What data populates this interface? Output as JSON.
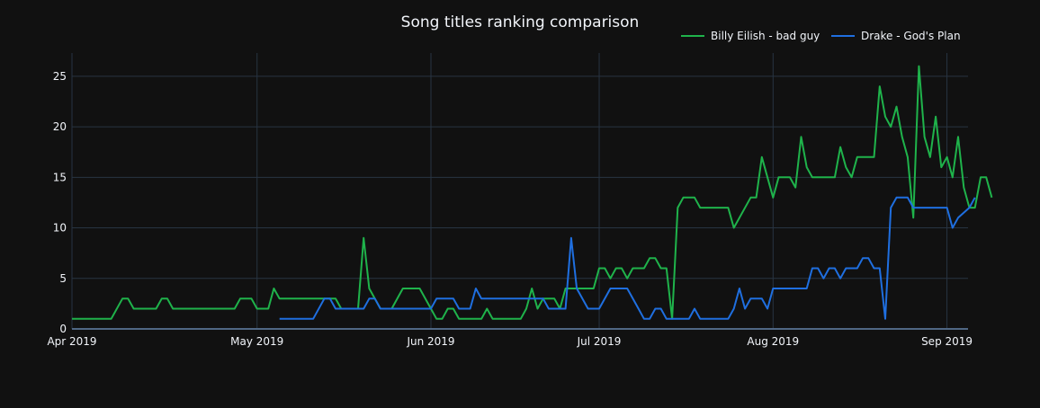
{
  "chart_data": {
    "type": "line",
    "title": "Song titles ranking comparison",
    "xlabel": "",
    "ylabel": "",
    "x_ticks": [
      {
        "label": "Apr 2019",
        "date": "2019-03-29"
      },
      {
        "label": "May 2019",
        "date": "2019-05-01"
      },
      {
        "label": "Jun 2019",
        "date": "2019-06-01"
      },
      {
        "label": "Jul 2019",
        "date": "2019-07-01"
      },
      {
        "label": "Aug 2019",
        "date": "2019-08-01"
      },
      {
        "label": "Sep 2019",
        "date": "2019-09-01"
      }
    ],
    "y_ticks": [
      0,
      5,
      10,
      15,
      20,
      25
    ],
    "xlim": [
      "2019-03-29",
      "2019-09-05"
    ],
    "ylim": [
      0,
      27.3
    ],
    "grid": true,
    "legend_position": "top-right",
    "series": [
      {
        "name": "Billy Eilish - bad guy",
        "color": "#1fb34b",
        "points": [
          [
            "2019-03-29",
            1
          ],
          [
            "2019-04-05",
            1
          ],
          [
            "2019-04-07",
            3
          ],
          [
            "2019-04-08",
            3
          ],
          [
            "2019-04-09",
            2
          ],
          [
            "2019-04-13",
            2
          ],
          [
            "2019-04-14",
            3
          ],
          [
            "2019-04-15",
            3
          ],
          [
            "2019-04-16",
            2
          ],
          [
            "2019-04-27",
            2
          ],
          [
            "2019-04-28",
            3
          ],
          [
            "2019-04-30",
            3
          ],
          [
            "2019-05-01",
            2
          ],
          [
            "2019-05-03",
            2
          ],
          [
            "2019-05-04",
            4
          ],
          [
            "2019-05-05",
            3
          ],
          [
            "2019-05-15",
            3
          ],
          [
            "2019-05-16",
            2
          ],
          [
            "2019-05-19",
            2
          ],
          [
            "2019-05-20",
            9
          ],
          [
            "2019-05-21",
            4
          ],
          [
            "2019-05-23",
            2
          ],
          [
            "2019-05-25",
            2
          ],
          [
            "2019-05-27",
            4
          ],
          [
            "2019-05-30",
            4
          ],
          [
            "2019-06-01",
            2
          ],
          [
            "2019-06-02",
            1
          ],
          [
            "2019-06-03",
            1
          ],
          [
            "2019-06-04",
            2
          ],
          [
            "2019-06-05",
            2
          ],
          [
            "2019-06-06",
            1
          ],
          [
            "2019-06-10",
            1
          ],
          [
            "2019-06-11",
            2
          ],
          [
            "2019-06-12",
            1
          ],
          [
            "2019-06-17",
            1
          ],
          [
            "2019-06-18",
            2
          ],
          [
            "2019-06-19",
            4
          ],
          [
            "2019-06-20",
            2
          ],
          [
            "2019-06-21",
            3
          ],
          [
            "2019-06-23",
            3
          ],
          [
            "2019-06-24",
            2
          ],
          [
            "2019-06-25",
            4
          ],
          [
            "2019-06-30",
            4
          ],
          [
            "2019-07-01",
            6
          ],
          [
            "2019-07-02",
            6
          ],
          [
            "2019-07-03",
            5
          ],
          [
            "2019-07-04",
            6
          ],
          [
            "2019-07-05",
            6
          ],
          [
            "2019-07-06",
            5
          ],
          [
            "2019-07-07",
            6
          ],
          [
            "2019-07-09",
            6
          ],
          [
            "2019-07-10",
            7
          ],
          [
            "2019-07-11",
            7
          ],
          [
            "2019-07-12",
            6
          ],
          [
            "2019-07-13",
            6
          ],
          [
            "2019-07-14",
            1
          ],
          [
            "2019-07-15",
            12
          ],
          [
            "2019-07-16",
            13
          ],
          [
            "2019-07-18",
            13
          ],
          [
            "2019-07-19",
            12
          ],
          [
            "2019-07-24",
            12
          ],
          [
            "2019-07-25",
            10
          ],
          [
            "2019-07-28",
            13
          ],
          [
            "2019-07-29",
            13
          ],
          [
            "2019-07-30",
            17
          ],
          [
            "2019-08-01",
            13
          ],
          [
            "2019-08-02",
            15
          ],
          [
            "2019-08-04",
            15
          ],
          [
            "2019-08-05",
            14
          ],
          [
            "2019-08-06",
            19
          ],
          [
            "2019-08-07",
            16
          ],
          [
            "2019-08-08",
            15
          ],
          [
            "2019-08-12",
            15
          ],
          [
            "2019-08-13",
            18
          ],
          [
            "2019-08-14",
            16
          ],
          [
            "2019-08-15",
            15
          ],
          [
            "2019-08-16",
            17
          ],
          [
            "2019-08-19",
            17
          ],
          [
            "2019-08-20",
            24
          ],
          [
            "2019-08-21",
            21
          ],
          [
            "2019-08-22",
            20
          ],
          [
            "2019-08-23",
            22
          ],
          [
            "2019-08-24",
            19
          ],
          [
            "2019-08-25",
            17
          ],
          [
            "2019-08-26",
            11
          ],
          [
            "2019-08-27",
            26
          ],
          [
            "2019-08-28",
            19
          ],
          [
            "2019-08-29",
            17
          ],
          [
            "2019-08-30",
            21
          ],
          [
            "2019-08-31",
            16
          ],
          [
            "2019-09-01",
            17
          ],
          [
            "2019-09-02",
            15
          ],
          [
            "2019-09-03",
            19
          ],
          [
            "2019-09-04",
            14
          ],
          [
            "2019-09-05",
            12
          ],
          [
            "2019-09-06",
            12
          ],
          [
            "2019-09-07",
            15
          ],
          [
            "2019-09-08",
            15
          ],
          [
            "2019-09-09",
            13
          ]
        ]
      },
      {
        "name": "Drake - God's Plan",
        "color": "#1f6fe0",
        "points": [
          [
            "2019-05-05",
            1
          ],
          [
            "2019-05-11",
            1
          ],
          [
            "2019-05-13",
            3
          ],
          [
            "2019-05-14",
            3
          ],
          [
            "2019-05-15",
            2
          ],
          [
            "2019-05-20",
            2
          ],
          [
            "2019-05-21",
            3
          ],
          [
            "2019-05-22",
            3
          ],
          [
            "2019-05-23",
            2
          ],
          [
            "2019-06-01",
            2
          ],
          [
            "2019-06-02",
            3
          ],
          [
            "2019-06-05",
            3
          ],
          [
            "2019-06-06",
            2
          ],
          [
            "2019-06-08",
            2
          ],
          [
            "2019-06-09",
            4
          ],
          [
            "2019-06-10",
            3
          ],
          [
            "2019-06-21",
            3
          ],
          [
            "2019-06-22",
            2
          ],
          [
            "2019-06-25",
            2
          ],
          [
            "2019-06-26",
            9
          ],
          [
            "2019-06-27",
            4
          ],
          [
            "2019-06-29",
            2
          ],
          [
            "2019-07-01",
            2
          ],
          [
            "2019-07-03",
            4
          ],
          [
            "2019-07-06",
            4
          ],
          [
            "2019-07-08",
            2
          ],
          [
            "2019-07-09",
            1
          ],
          [
            "2019-07-10",
            1
          ],
          [
            "2019-07-11",
            2
          ],
          [
            "2019-07-12",
            2
          ],
          [
            "2019-07-13",
            1
          ],
          [
            "2019-07-17",
            1
          ],
          [
            "2019-07-18",
            2
          ],
          [
            "2019-07-19",
            1
          ],
          [
            "2019-07-24",
            1
          ],
          [
            "2019-07-25",
            2
          ],
          [
            "2019-07-26",
            4
          ],
          [
            "2019-07-27",
            2
          ],
          [
            "2019-07-28",
            3
          ],
          [
            "2019-07-30",
            3
          ],
          [
            "2019-07-31",
            2
          ],
          [
            "2019-08-01",
            4
          ],
          [
            "2019-08-07",
            4
          ],
          [
            "2019-08-08",
            6
          ],
          [
            "2019-08-09",
            6
          ],
          [
            "2019-08-10",
            5
          ],
          [
            "2019-08-11",
            6
          ],
          [
            "2019-08-12",
            6
          ],
          [
            "2019-08-13",
            5
          ],
          [
            "2019-08-14",
            6
          ],
          [
            "2019-08-16",
            6
          ],
          [
            "2019-08-17",
            7
          ],
          [
            "2019-08-18",
            7
          ],
          [
            "2019-08-19",
            6
          ],
          [
            "2019-08-20",
            6
          ],
          [
            "2019-08-21",
            1
          ],
          [
            "2019-08-22",
            12
          ],
          [
            "2019-08-23",
            13
          ],
          [
            "2019-08-25",
            13
          ],
          [
            "2019-08-26",
            12
          ],
          [
            "2019-09-01",
            12
          ],
          [
            "2019-09-02",
            10
          ],
          [
            "2019-09-03",
            11
          ],
          [
            "2019-09-05",
            12
          ],
          [
            "2019-09-06",
            13
          ]
        ]
      }
    ]
  }
}
